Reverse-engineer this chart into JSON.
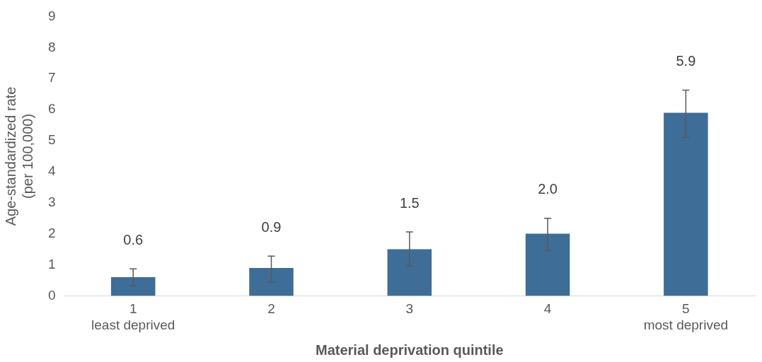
{
  "chart_data": {
    "type": "bar",
    "xlabel": "Material deprivation quintile",
    "ylabel": "Age-standardized rate\n(per 100,000)",
    "categories": [
      "1\nleast deprived",
      "2",
      "3",
      "4",
      "5\nmost deprived"
    ],
    "values": [
      0.6,
      0.9,
      1.5,
      2.0,
      5.9
    ],
    "value_labels": [
      "0.6",
      "0.9",
      "1.5",
      "2.0",
      "5.9"
    ],
    "errors": [
      [
        0.32,
        0.87
      ],
      [
        0.44,
        1.28
      ],
      [
        0.96,
        2.06
      ],
      [
        1.47,
        2.5
      ],
      [
        5.11,
        6.63
      ]
    ],
    "color": "#3e6d97",
    "ylim": [
      0,
      9
    ],
    "yticks": [
      0,
      1,
      2,
      3,
      4,
      5,
      6,
      7,
      8,
      9
    ],
    "grid": false,
    "legend": false
  }
}
